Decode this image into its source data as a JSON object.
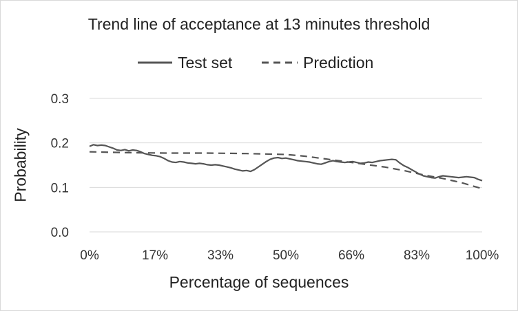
{
  "chart_data": {
    "type": "line",
    "title": "Trend line of acceptance at 13 minutes threshold",
    "xlabel": "Percentage of sequences",
    "ylabel": "Probability",
    "x_ticks": [
      "0%",
      "17%",
      "33%",
      "50%",
      "66%",
      "83%",
      "100%"
    ],
    "y_ticks": [
      "0.0",
      "0.1",
      "0.2",
      "0.3"
    ],
    "xlim": [
      0,
      100
    ],
    "ylim": [
      0,
      0.3
    ],
    "grid": true,
    "legend": "top",
    "series": [
      {
        "name": "Test set",
        "style": "solid",
        "color": "#555555",
        "x": [
          0,
          1,
          2,
          3,
          4,
          5,
          6,
          7,
          8,
          9,
          10,
          11,
          12,
          13,
          14,
          15,
          16,
          17,
          18,
          19,
          20,
          21,
          22,
          23,
          24,
          25,
          26,
          27,
          28,
          29,
          30,
          31,
          32,
          33,
          34,
          35,
          36,
          37,
          38,
          39,
          40,
          41,
          42,
          43,
          44,
          45,
          46,
          47,
          48,
          49,
          50,
          51,
          52,
          53,
          54,
          55,
          56,
          57,
          58,
          59,
          60,
          61,
          62,
          63,
          64,
          65,
          66,
          67,
          68,
          69,
          70,
          71,
          72,
          73,
          74,
          75,
          76,
          77,
          78,
          79,
          80,
          81,
          82,
          83,
          84,
          85,
          86,
          87,
          88,
          89,
          90,
          91,
          92,
          93,
          94,
          95,
          96,
          97,
          98,
          99,
          100
        ],
        "values": [
          0.192,
          0.196,
          0.194,
          0.195,
          0.194,
          0.191,
          0.188,
          0.184,
          0.183,
          0.185,
          0.182,
          0.184,
          0.183,
          0.18,
          0.176,
          0.174,
          0.172,
          0.171,
          0.169,
          0.165,
          0.16,
          0.157,
          0.156,
          0.158,
          0.157,
          0.155,
          0.154,
          0.153,
          0.154,
          0.153,
          0.151,
          0.15,
          0.151,
          0.15,
          0.148,
          0.146,
          0.144,
          0.141,
          0.139,
          0.137,
          0.138,
          0.136,
          0.14,
          0.146,
          0.152,
          0.158,
          0.163,
          0.166,
          0.167,
          0.165,
          0.166,
          0.164,
          0.162,
          0.16,
          0.159,
          0.158,
          0.157,
          0.155,
          0.153,
          0.152,
          0.155,
          0.158,
          0.16,
          0.158,
          0.157,
          0.156,
          0.157,
          0.158,
          0.156,
          0.154,
          0.155,
          0.157,
          0.156,
          0.158,
          0.16,
          0.161,
          0.162,
          0.163,
          0.162,
          0.155,
          0.149,
          0.145,
          0.14,
          0.135,
          0.13,
          0.126,
          0.124,
          0.122,
          0.121,
          0.124,
          0.126,
          0.125,
          0.124,
          0.123,
          0.122,
          0.123,
          0.124,
          0.123,
          0.122,
          0.118,
          0.115
        ]
      },
      {
        "name": "Prediction",
        "style": "dashed",
        "color": "#555555",
        "x": [
          0,
          10,
          20,
          30,
          40,
          50,
          55,
          60,
          65,
          70,
          75,
          80,
          85,
          90,
          95,
          100
        ],
        "values": [
          0.18,
          0.178,
          0.177,
          0.177,
          0.176,
          0.174,
          0.17,
          0.164,
          0.158,
          0.152,
          0.146,
          0.138,
          0.128,
          0.12,
          0.11,
          0.097
        ]
      }
    ]
  }
}
